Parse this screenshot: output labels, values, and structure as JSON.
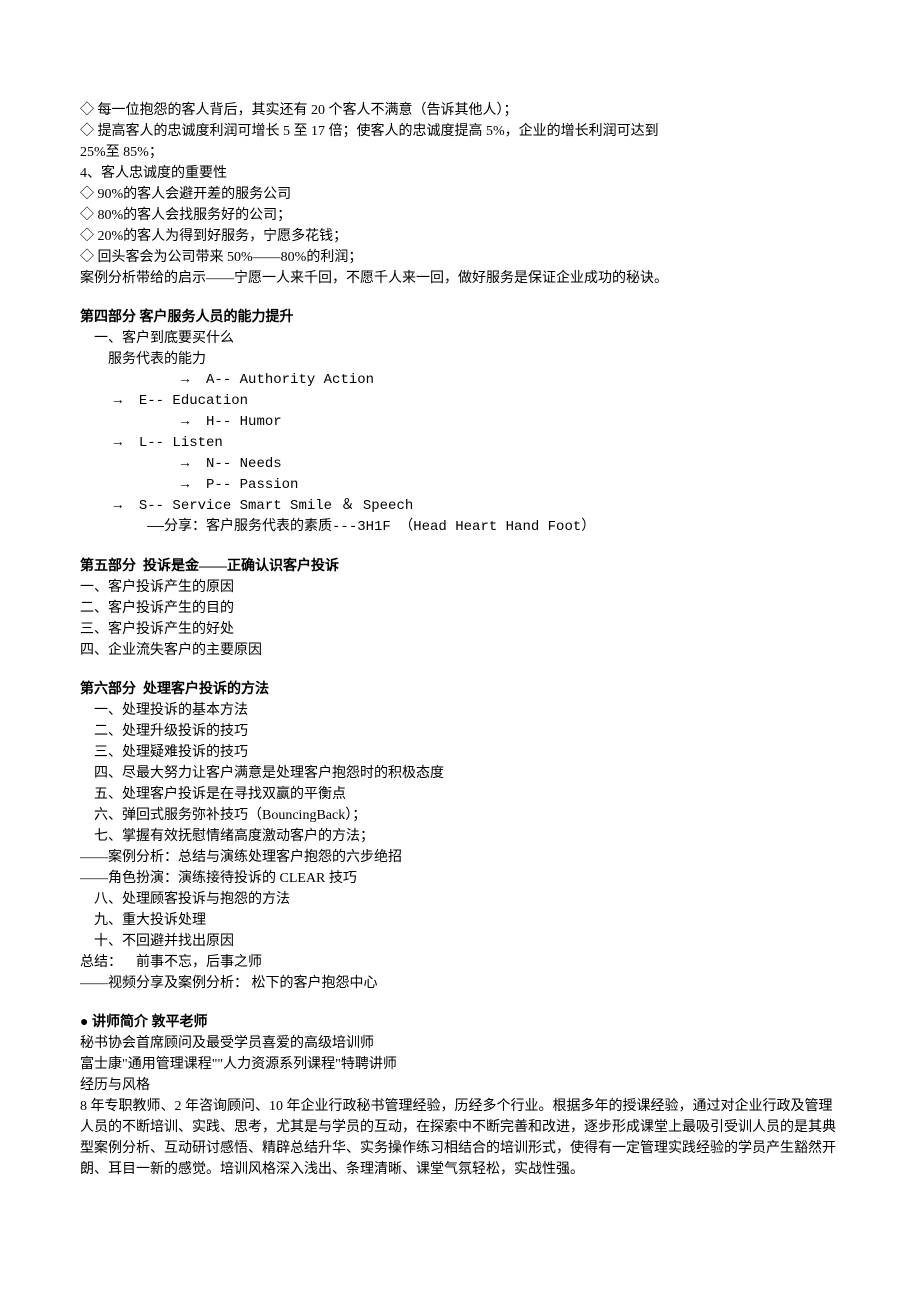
{
  "p1": {
    "l1": "◇ 每一位抱怨的客人背后，其实还有 20 个客人不满意（告诉其他人）；",
    "l2": "◇ 提高客人的忠诚度利润可增长 5 至 17 倍；使客人的忠诚度提高 5%，企业的增长利润可达到",
    "l3": "25%至 85%；",
    "l4": "4、客人忠诚度的重要性",
    "l5": "◇ 90%的客人会避开差的服务公司",
    "l6": "◇ 80%的客人会找服务好的公司；",
    "l7": "◇ 20%的客人为得到好服务，宁愿多花钱；",
    "l8": "◇ 回头客会为公司带来 50%——80%的利润；",
    "l9": "案例分析带给的启示——宁愿一人来千回，不愿千人来一回，做好服务是保证企业成功的秘诀。"
  },
  "s4": {
    "title": "第四部分 客户服务人员的能力提升",
    "l1": "    一、客户到底要买什么",
    "l2": "        服务代表的能力",
    "l3": "            →  A-- Authority Action",
    "l4": "    →  E-- Education",
    "l5": "            →  H-- Humor",
    "l6": "    →  L-- Listen",
    "l7": "            →  N-- Needs",
    "l8": "            →  P-- Passion",
    "l9": "    →  S-- Service Smart Smile ＆ Speech",
    "l10": "        ——分享：客户服务代表的素质---3H1F （Head Heart Hand Foot）"
  },
  "s5": {
    "title": "第五部分  投诉是金——正确认识客户投诉",
    "l1": "一、客户投诉产生的原因",
    "l2": "二、客户投诉产生的目的",
    "l3": "三、客户投诉产生的好处",
    "l4": "四、企业流失客户的主要原因"
  },
  "s6": {
    "title": "第六部分  处理客户投诉的方法",
    "l1": "    一、处理投诉的基本方法",
    "l2": "    二、处理升级投诉的技巧",
    "l3": "    三、处理疑难投诉的技巧",
    "l4": "    四、尽最大努力让客户满意是处理客户抱怨时的积极态度",
    "l5": "    五、处理客户投诉是在寻找双赢的平衡点",
    "l6": "    六、弹回式服务弥补技巧（BouncingBack）；",
    "l7": "    七、掌握有效抚慰情绪高度激动客户的方法；",
    "l8": "——案例分析：总结与演练处理客户抱怨的六步绝招",
    "l9": "——角色扮演：演练接待投诉的 CLEAR 技巧",
    "l10": "    八、处理顾客投诉与抱怨的方法",
    "l11": "    九、重大投诉处理",
    "l12": "    十、不回避并找出原因",
    "l13": "总结：    前事不忘，后事之师",
    "l14": "——视频分享及案例分析： 松下的客户抱怨中心"
  },
  "teacher": {
    "title": "● 讲师简介 敦平老师",
    "l1": "秘书协会首席顾问及最受学员喜爱的高级培训师",
    "l2": "富士康\"通用管理课程\"\"人力资源系列课程\"特聘讲师",
    "l3": "经历与风格",
    "l4": "8 年专职教师、2 年咨询顾问、10 年企业行政秘书管理经验，历经多个行业。根据多年的授课经验，通过对企业行政及管理人员的不断培训、实践、思考，尤其是与学员的互动，在探索中不断完善和改进，逐步形成课堂上最吸引受训人员的是其典型案例分析、互动研讨感悟、精辟总结升华、实务操作练习相结合的培训形式，使得有一定管理实践经验的学员产生豁然开朗、耳目一新的感觉。培训风格深入浅出、条理清晰、课堂气氛轻松，实战性强。"
  }
}
